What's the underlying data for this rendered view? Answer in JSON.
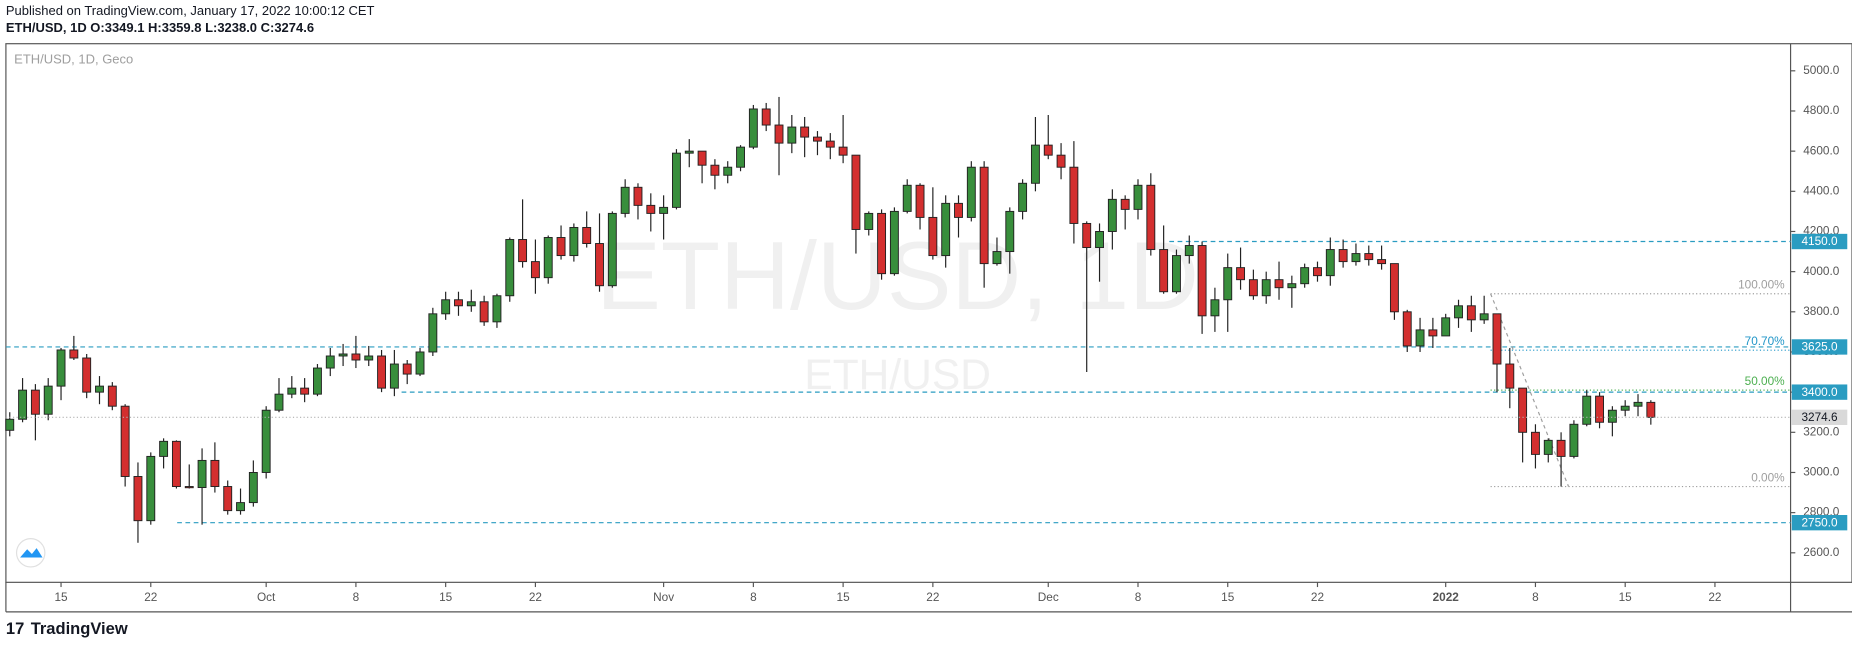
{
  "header": {
    "published": "Published on TradingView.com, January 17, 2022 10:00:12 CET",
    "legend": "ETH/USD, 1D O:3349.1 H:3359.8 L:3238.0 C:3274.6",
    "footer": "TradingView"
  },
  "chart_data": {
    "type": "candlestick",
    "title": "ETH/USD, 1D, Geco",
    "watermark": "ETH/USD, 1D",
    "watermark_sub": "ETH/USD",
    "up_color": "#388e3c",
    "down_color": "#d32f2f",
    "level_color": "#2a9cc1",
    "open": [
      3210,
      3265,
      3410,
      3290,
      3430,
      3610,
      3570,
      3400,
      3430,
      3330,
      2980,
      2760,
      3080,
      3155,
      2930,
      2925,
      3060,
      2930,
      2810,
      2850,
      3000,
      3310,
      3390,
      3420,
      3390,
      3520,
      3580,
      3590,
      3560,
      3580,
      3420,
      3540,
      3490,
      3600,
      3790,
      3860,
      3830,
      3850,
      3750,
      3880,
      4160,
      4050,
      3970,
      4170,
      4080,
      4220,
      4140,
      3930,
      4290,
      4420,
      4330,
      4290,
      4320,
      4590,
      4600,
      4530,
      4480,
      4520,
      4620,
      4810,
      4730,
      4640,
      4720,
      4670,
      4650,
      4620,
      4580,
      4210,
      4290,
      3990,
      4300,
      4430,
      4270,
      4080,
      4340,
      4270,
      4520,
      4040,
      4100,
      4300,
      4440,
      4630,
      4580,
      4520,
      4240,
      4120,
      4200,
      4360,
      4310,
      4430,
      4110,
      3900,
      4080,
      4130,
      3780,
      3860,
      4020,
      3960,
      3880,
      3960,
      3920,
      3940,
      4020,
      3980,
      4110,
      4050,
      4090,
      4060,
      4040,
      3800,
      3630,
      3710,
      3680,
      3770,
      3830,
      3760,
      3790,
      3540,
      3420,
      3200,
      3090,
      3160,
      3080,
      3240,
      3380,
      3250,
      3310,
      3330,
      3349.1
    ],
    "high": [
      3300,
      3470,
      3440,
      3470,
      3620,
      3680,
      3590,
      3480,
      3450,
      3340,
      3050,
      3100,
      3170,
      3160,
      3040,
      3120,
      3150,
      2960,
      2920,
      3060,
      3330,
      3470,
      3480,
      3470,
      3540,
      3620,
      3640,
      3680,
      3630,
      3610,
      3610,
      3560,
      3620,
      3820,
      3900,
      3900,
      3910,
      3880,
      3890,
      4170,
      4360,
      4160,
      4180,
      4230,
      4240,
      4300,
      4290,
      4300,
      4460,
      4440,
      4390,
      4380,
      4610,
      4660,
      4600,
      4560,
      4550,
      4630,
      4830,
      4840,
      4870,
      4780,
      4770,
      4700,
      4690,
      4780,
      4580,
      4300,
      4310,
      4320,
      4460,
      4440,
      4420,
      4380,
      4380,
      4550,
      4550,
      4170,
      4320,
      4460,
      4770,
      4780,
      4640,
      4650,
      4250,
      4240,
      4410,
      4380,
      4460,
      4490,
      4230,
      4110,
      4180,
      4150,
      3920,
      4090,
      4120,
      4010,
      4000,
      4050,
      3980,
      4040,
      4050,
      4170,
      4160,
      4140,
      4130,
      4130,
      4040,
      3810,
      3770,
      3770,
      3790,
      3860,
      3880,
      3880,
      3790,
      3620,
      3420,
      3240,
      3170,
      3200,
      3260,
      3410,
      3400,
      3330,
      3360,
      3390,
      3359.8
    ],
    "low": [
      3180,
      3250,
      3160,
      3260,
      3360,
      3560,
      3370,
      3340,
      3310,
      2930,
      2650,
      2740,
      3020,
      2920,
      2920,
      2740,
      2900,
      2790,
      2790,
      2830,
      2970,
      3300,
      3370,
      3350,
      3380,
      3480,
      3530,
      3520,
      3530,
      3400,
      3380,
      3440,
      3480,
      3580,
      3760,
      3780,
      3800,
      3730,
      3720,
      3850,
      4020,
      3890,
      3940,
      4060,
      4050,
      4120,
      3900,
      3920,
      4270,
      4260,
      4200,
      4160,
      4310,
      4520,
      4440,
      4410,
      4440,
      4500,
      4610,
      4700,
      4480,
      4590,
      4570,
      4580,
      4560,
      4540,
      4090,
      4180,
      3960,
      3980,
      4290,
      4210,
      4060,
      4020,
      4170,
      4250,
      3920,
      4030,
      3990,
      4260,
      4400,
      4560,
      4460,
      4140,
      3500,
      3950,
      4110,
      4210,
      4260,
      4080,
      3890,
      3890,
      4040,
      3690,
      3700,
      3700,
      3910,
      3860,
      3840,
      3860,
      3820,
      3920,
      3950,
      3930,
      4020,
      4030,
      4030,
      4010,
      3760,
      3600,
      3600,
      3620,
      3680,
      3720,
      3700,
      3740,
      3400,
      3320,
      3050,
      3020,
      3050,
      2930,
      3070,
      3230,
      3220,
      3180,
      3280,
      3280,
      3238.0
    ],
    "close": [
      3265,
      3410,
      3290,
      3430,
      3610,
      3570,
      3400,
      3430,
      3330,
      2980,
      2760,
      3080,
      3155,
      2930,
      2925,
      3060,
      2930,
      2810,
      2850,
      3000,
      3310,
      3390,
      3420,
      3390,
      3520,
      3580,
      3590,
      3560,
      3580,
      3420,
      3540,
      3490,
      3600,
      3790,
      3860,
      3830,
      3850,
      3750,
      3880,
      4160,
      4050,
      3970,
      4170,
      4080,
      4220,
      4140,
      3930,
      4290,
      4420,
      4330,
      4290,
      4320,
      4590,
      4600,
      4530,
      4480,
      4520,
      4620,
      4810,
      4730,
      4640,
      4720,
      4670,
      4650,
      4620,
      4580,
      4210,
      4290,
      3990,
      4300,
      4430,
      4270,
      4080,
      4340,
      4270,
      4520,
      4040,
      4100,
      4300,
      4440,
      4630,
      4580,
      4520,
      4240,
      4120,
      4200,
      4360,
      4310,
      4430,
      4110,
      3900,
      4080,
      4130,
      3780,
      3860,
      4020,
      3960,
      3880,
      3960,
      3920,
      3940,
      4020,
      3980,
      4110,
      4050,
      4090,
      4060,
      4040,
      3800,
      3630,
      3710,
      3680,
      3770,
      3830,
      3760,
      3790,
      3540,
      3420,
      3200,
      3090,
      3160,
      3080,
      3240,
      3380,
      3250,
      3310,
      3330,
      3349.1,
      3274.6
    ],
    "xlim": [
      -0.3,
      138.9
    ],
    "xticks": [
      {
        "value": 4,
        "label": "15"
      },
      {
        "value": 11,
        "label": "22"
      },
      {
        "value": 20,
        "label": "Oct"
      },
      {
        "value": 27,
        "label": "8"
      },
      {
        "value": 34,
        "label": "15"
      },
      {
        "value": 41,
        "label": "22"
      },
      {
        "value": 51,
        "label": "Nov"
      },
      {
        "value": 58,
        "label": "8"
      },
      {
        "value": 65,
        "label": "15"
      },
      {
        "value": 72,
        "label": "22"
      },
      {
        "value": 81,
        "label": "Dec"
      },
      {
        "value": 88,
        "label": "8"
      },
      {
        "value": 95,
        "label": "15"
      },
      {
        "value": 102,
        "label": "22"
      },
      {
        "value": 112,
        "label": "2022"
      },
      {
        "value": 119,
        "label": "8"
      },
      {
        "value": 126,
        "label": "15"
      },
      {
        "value": 133,
        "label": "22"
      }
    ],
    "ylim": [
      2453,
      5135
    ],
    "yticks": [
      {
        "value": 2600,
        "label": "2600.0"
      },
      {
        "value": 2800,
        "label": "2800.0"
      },
      {
        "value": 3000,
        "label": "3000.0"
      },
      {
        "value": 3200,
        "label": "3200.0"
      },
      {
        "value": 3400,
        "label": "3400.0"
      },
      {
        "value": 3600,
        "label": "3600.0"
      },
      {
        "value": 3800,
        "label": "3800.0"
      },
      {
        "value": 4000,
        "label": "4000.0"
      },
      {
        "value": 4200,
        "label": "4200.0"
      },
      {
        "value": 4400,
        "label": "4400.0"
      },
      {
        "value": 4600,
        "label": "4600.0"
      },
      {
        "value": 4800,
        "label": "4800.0"
      },
      {
        "value": 5000,
        "label": "5000.0"
      }
    ],
    "levels": [
      {
        "value": 4150,
        "label": "4150.0"
      },
      {
        "value": 3625,
        "label": "3625.0"
      },
      {
        "value": 3400,
        "label": "3400.0"
      },
      {
        "value": 2750,
        "label": "2750.0"
      }
    ],
    "fib": [
      {
        "value": 3890,
        "label": "100.00%",
        "color": "#9e9e9e"
      },
      {
        "value": 3609,
        "label": "70.70%",
        "color": "#2196c8"
      },
      {
        "value": 3410,
        "label": "50.00%",
        "color": "#4caf50"
      },
      {
        "value": 2930,
        "label": "0.00%",
        "color": "#9e9e9e"
      }
    ]
  }
}
